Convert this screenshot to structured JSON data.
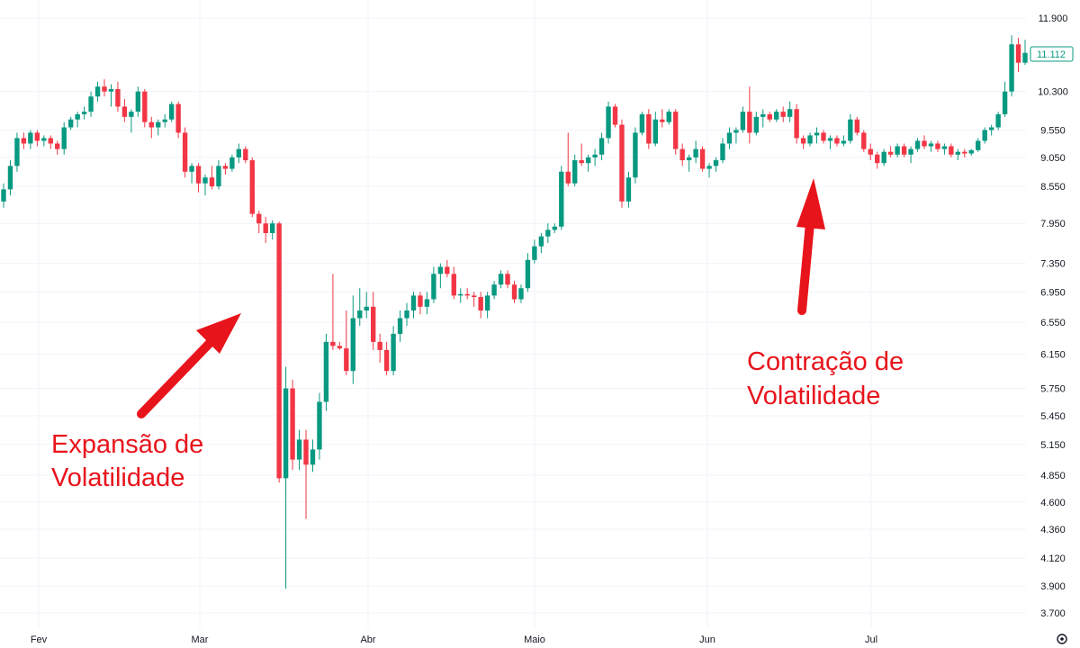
{
  "chart_data": {
    "type": "candlestick",
    "title": "",
    "xlabel": "",
    "ylabel": "",
    "y_scale": "log",
    "ylim": [
      3.62,
      12.05
    ],
    "grid": true,
    "legend": "none",
    "colors": {
      "up": "#089981",
      "down": "#f23645",
      "annotation": "#e8141c",
      "grid": "#f0f3fa"
    },
    "y_ticks": [
      "11.900",
      "10.300",
      "9.550",
      "9.050",
      "8.550",
      "7.950",
      "7.350",
      "6.950",
      "6.550",
      "6.150",
      "5.750",
      "5.450",
      "5.150",
      "4.850",
      "4.600",
      "4.360",
      "4.120",
      "3.900",
      "3.700"
    ],
    "x_ticks": [
      "Fev",
      "Mar",
      "Abr",
      "Maio",
      "Jun",
      "Jul"
    ],
    "last_price": "11.112",
    "annotations": [
      {
        "lines": [
          "Expansão de",
          "Volatilidade"
        ]
      },
      {
        "lines": [
          "Contração de",
          "Volatilidade"
        ]
      }
    ],
    "candles": [
      [
        8.3,
        8.6,
        8.2,
        8.5
      ],
      [
        8.5,
        9.0,
        8.4,
        8.9
      ],
      [
        8.9,
        9.5,
        8.8,
        9.4
      ],
      [
        9.4,
        9.5,
        9.2,
        9.3
      ],
      [
        9.3,
        9.55,
        9.2,
        9.5
      ],
      [
        9.5,
        9.55,
        9.25,
        9.35
      ],
      [
        9.35,
        9.45,
        9.25,
        9.4
      ],
      [
        9.4,
        9.45,
        9.2,
        9.3
      ],
      [
        9.3,
        9.35,
        9.1,
        9.2
      ],
      [
        9.2,
        9.7,
        9.1,
        9.6
      ],
      [
        9.6,
        9.8,
        9.55,
        9.75
      ],
      [
        9.75,
        9.9,
        9.6,
        9.85
      ],
      [
        9.85,
        10.0,
        9.75,
        9.9
      ],
      [
        9.9,
        10.3,
        9.8,
        10.2
      ],
      [
        10.2,
        10.5,
        10.1,
        10.4
      ],
      [
        10.4,
        10.55,
        10.2,
        10.3
      ],
      [
        10.3,
        10.45,
        10.0,
        10.35
      ],
      [
        10.35,
        10.5,
        9.9,
        10.0
      ],
      [
        10.0,
        10.15,
        9.7,
        9.8
      ],
      [
        9.8,
        9.95,
        9.5,
        9.9
      ],
      [
        9.9,
        10.4,
        9.8,
        10.3
      ],
      [
        10.3,
        10.35,
        9.6,
        9.7
      ],
      [
        9.7,
        9.8,
        9.4,
        9.6
      ],
      [
        9.6,
        9.75,
        9.45,
        9.7
      ],
      [
        9.7,
        9.85,
        9.6,
        9.75
      ],
      [
        9.75,
        10.1,
        9.7,
        10.05
      ],
      [
        10.05,
        10.1,
        9.4,
        9.5
      ],
      [
        9.5,
        9.6,
        8.7,
        8.8
      ],
      [
        8.8,
        8.95,
        8.6,
        8.9
      ],
      [
        8.9,
        8.95,
        8.45,
        8.6
      ],
      [
        8.6,
        8.75,
        8.4,
        8.7
      ],
      [
        8.7,
        8.9,
        8.5,
        8.55
      ],
      [
        8.55,
        9.0,
        8.5,
        8.9
      ],
      [
        8.9,
        8.95,
        8.75,
        8.85
      ],
      [
        8.85,
        9.1,
        8.8,
        9.05
      ],
      [
        9.05,
        9.3,
        8.95,
        9.2
      ],
      [
        9.2,
        9.25,
        8.95,
        9.0
      ],
      [
        9.0,
        9.05,
        8.05,
        8.1
      ],
      [
        8.1,
        8.15,
        7.8,
        7.95
      ],
      [
        7.95,
        8.05,
        7.65,
        7.8
      ],
      [
        7.8,
        8.0,
        7.7,
        7.95
      ],
      [
        7.95,
        7.98,
        4.78,
        4.82
      ],
      [
        4.82,
        6.0,
        3.88,
        5.75
      ],
      [
        5.75,
        5.85,
        4.9,
        5.0
      ],
      [
        5.0,
        5.3,
        4.9,
        5.2
      ],
      [
        5.2,
        5.3,
        4.45,
        4.95
      ],
      [
        4.95,
        5.2,
        4.88,
        5.1
      ],
      [
        5.1,
        5.7,
        5.0,
        5.6
      ],
      [
        5.6,
        6.4,
        5.5,
        6.3
      ],
      [
        6.3,
        7.2,
        6.2,
        6.25
      ],
      [
        6.25,
        6.3,
        6.2,
        6.22
      ],
      [
        6.22,
        6.7,
        5.9,
        5.95
      ],
      [
        5.95,
        6.9,
        5.8,
        6.6
      ],
      [
        6.6,
        7.0,
        6.5,
        6.7
      ],
      [
        6.7,
        6.95,
        6.6,
        6.75
      ],
      [
        6.75,
        6.95,
        6.2,
        6.3
      ],
      [
        6.3,
        6.4,
        6.05,
        6.2
      ],
      [
        6.2,
        6.3,
        5.9,
        5.95
      ],
      [
        5.95,
        6.5,
        5.9,
        6.4
      ],
      [
        6.4,
        6.7,
        6.3,
        6.6
      ],
      [
        6.6,
        6.8,
        6.5,
        6.7
      ],
      [
        6.7,
        6.95,
        6.6,
        6.9
      ],
      [
        6.9,
        6.95,
        6.65,
        6.75
      ],
      [
        6.75,
        6.95,
        6.65,
        6.85
      ],
      [
        6.85,
        7.3,
        6.8,
        7.2
      ],
      [
        7.2,
        7.35,
        7.0,
        7.3
      ],
      [
        7.3,
        7.4,
        7.15,
        7.2
      ],
      [
        7.2,
        7.3,
        6.85,
        6.9
      ],
      [
        6.9,
        7.0,
        6.8,
        6.92
      ],
      [
        6.92,
        7.0,
        6.85,
        6.9
      ],
      [
        6.9,
        6.95,
        6.75,
        6.88
      ],
      [
        6.88,
        6.95,
        6.6,
        6.7
      ],
      [
        6.7,
        6.95,
        6.6,
        6.9
      ],
      [
        6.9,
        7.1,
        6.85,
        7.05
      ],
      [
        7.05,
        7.25,
        7.0,
        7.2
      ],
      [
        7.2,
        7.25,
        7.0,
        7.05
      ],
      [
        7.05,
        7.1,
        6.8,
        6.85
      ],
      [
        6.85,
        7.05,
        6.8,
        7.0
      ],
      [
        7.0,
        7.5,
        6.95,
        7.4
      ],
      [
        7.4,
        7.7,
        7.35,
        7.6
      ],
      [
        7.6,
        7.8,
        7.5,
        7.75
      ],
      [
        7.75,
        7.95,
        7.65,
        7.85
      ],
      [
        7.85,
        7.95,
        7.8,
        7.9
      ],
      [
        7.9,
        8.9,
        7.85,
        8.8
      ],
      [
        8.8,
        9.5,
        8.55,
        8.6
      ],
      [
        8.6,
        9.1,
        8.55,
        9.0
      ],
      [
        9.0,
        9.3,
        8.9,
        8.95
      ],
      [
        8.95,
        9.1,
        8.8,
        9.05
      ],
      [
        9.05,
        9.2,
        8.9,
        9.1
      ],
      [
        9.1,
        9.5,
        9.0,
        9.4
      ],
      [
        9.4,
        10.1,
        9.3,
        10.0
      ],
      [
        10.0,
        10.05,
        9.6,
        9.65
      ],
      [
        9.65,
        9.75,
        8.2,
        8.3
      ],
      [
        8.3,
        8.8,
        8.2,
        8.7
      ],
      [
        8.7,
        9.6,
        8.6,
        9.5
      ],
      [
        9.5,
        9.9,
        9.45,
        9.85
      ],
      [
        9.85,
        9.95,
        9.2,
        9.3
      ],
      [
        9.3,
        9.9,
        9.25,
        9.75
      ],
      [
        9.75,
        9.95,
        9.6,
        9.7
      ],
      [
        9.7,
        9.95,
        9.65,
        9.9
      ],
      [
        9.9,
        9.95,
        9.1,
        9.2
      ],
      [
        9.2,
        9.3,
        8.9,
        9.0
      ],
      [
        9.0,
        9.1,
        8.8,
        9.05
      ],
      [
        9.05,
        9.35,
        8.95,
        9.2
      ],
      [
        9.2,
        9.25,
        8.8,
        8.85
      ],
      [
        8.85,
        8.95,
        8.7,
        8.9
      ],
      [
        8.9,
        9.05,
        8.8,
        9.0
      ],
      [
        9.0,
        9.4,
        8.95,
        9.3
      ],
      [
        9.3,
        9.6,
        9.2,
        9.5
      ],
      [
        9.5,
        9.6,
        9.3,
        9.55
      ],
      [
        9.55,
        10.0,
        9.5,
        9.9
      ],
      [
        9.9,
        10.4,
        9.3,
        9.5
      ],
      [
        9.5,
        9.9,
        9.45,
        9.8
      ],
      [
        9.8,
        9.95,
        9.6,
        9.85
      ],
      [
        9.85,
        9.9,
        9.7,
        9.75
      ],
      [
        9.75,
        9.95,
        9.7,
        9.9
      ],
      [
        9.9,
        10.0,
        9.7,
        9.8
      ],
      [
        9.8,
        10.1,
        9.7,
        9.95
      ],
      [
        9.95,
        10.05,
        9.3,
        9.4
      ],
      [
        9.4,
        9.45,
        9.2,
        9.3
      ],
      [
        9.3,
        9.5,
        9.25,
        9.45
      ],
      [
        9.45,
        9.6,
        9.3,
        9.5
      ],
      [
        9.5,
        9.55,
        9.3,
        9.35
      ],
      [
        9.35,
        9.45,
        9.2,
        9.4
      ],
      [
        9.4,
        9.45,
        9.25,
        9.3
      ],
      [
        9.3,
        9.45,
        9.25,
        9.35
      ],
      [
        9.35,
        9.85,
        9.3,
        9.75
      ],
      [
        9.75,
        9.8,
        9.45,
        9.5
      ],
      [
        9.5,
        9.55,
        9.15,
        9.2
      ],
      [
        9.2,
        9.3,
        9.0,
        9.1
      ],
      [
        9.1,
        9.15,
        8.85,
        8.95
      ],
      [
        8.95,
        9.2,
        8.9,
        9.15
      ],
      [
        9.15,
        9.25,
        9.05,
        9.1
      ],
      [
        9.1,
        9.3,
        9.05,
        9.25
      ],
      [
        9.25,
        9.3,
        9.05,
        9.1
      ],
      [
        9.1,
        9.25,
        8.95,
        9.2
      ],
      [
        9.2,
        9.4,
        9.15,
        9.35
      ],
      [
        9.35,
        9.45,
        9.2,
        9.25
      ],
      [
        9.25,
        9.35,
        9.15,
        9.3
      ],
      [
        9.3,
        9.35,
        9.15,
        9.2
      ],
      [
        9.2,
        9.3,
        9.1,
        9.25
      ],
      [
        9.25,
        9.3,
        9.05,
        9.1
      ],
      [
        9.1,
        9.2,
        9.0,
        9.15
      ],
      [
        9.15,
        9.2,
        9.05,
        9.12
      ],
      [
        9.12,
        9.2,
        9.08,
        9.18
      ],
      [
        9.18,
        9.4,
        9.15,
        9.35
      ],
      [
        9.35,
        9.6,
        9.3,
        9.55
      ],
      [
        9.55,
        9.65,
        9.45,
        9.6
      ],
      [
        9.6,
        9.9,
        9.55,
        9.85
      ],
      [
        9.85,
        10.5,
        9.8,
        10.3
      ],
      [
        10.3,
        11.5,
        10.2,
        11.3
      ],
      [
        11.3,
        11.45,
        10.7,
        10.9
      ],
      [
        10.9,
        11.4,
        10.85,
        11.112
      ]
    ]
  }
}
